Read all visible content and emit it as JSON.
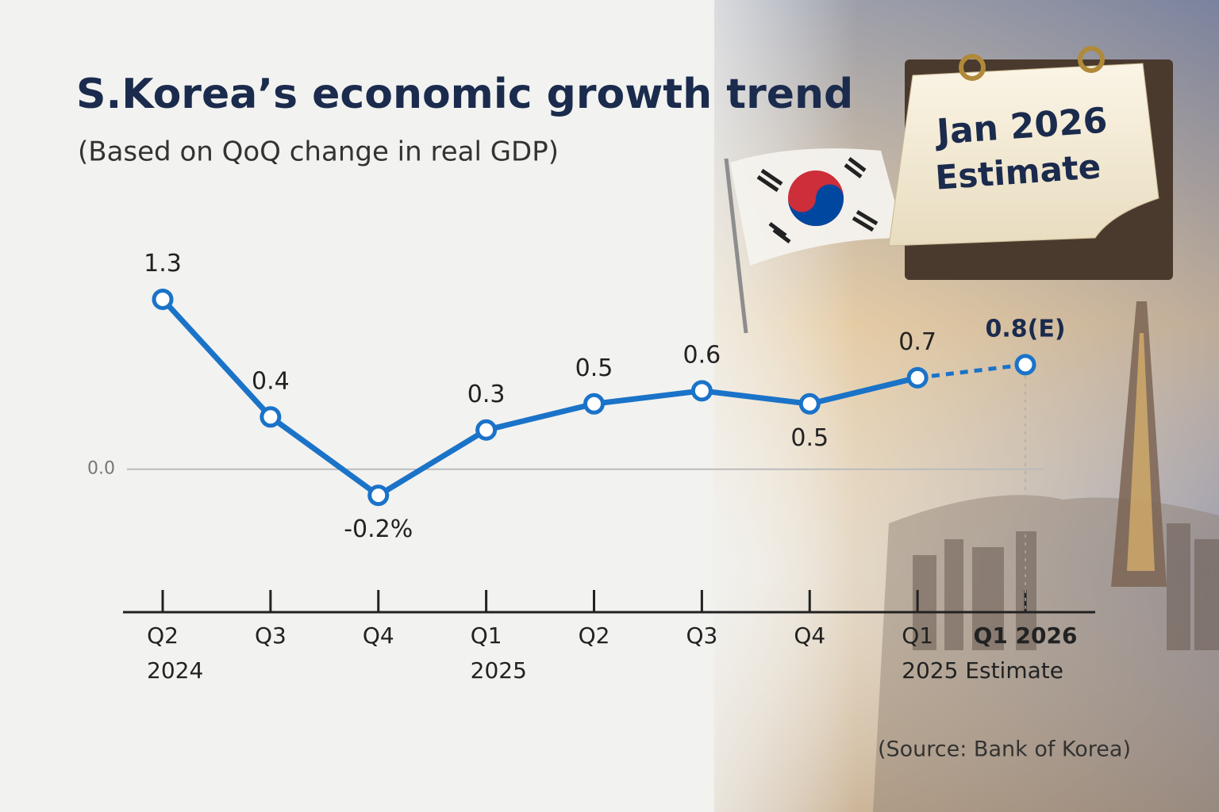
{
  "chart_data": {
    "type": "line",
    "title": "S.Korea’s economic growth trend",
    "subtitle": "(Based on QoQ change in real GDP)",
    "source": "(Source: Bank of Korea)",
    "calendar_text": [
      "Jan 2026",
      "Estimate"
    ],
    "categories": [
      "Q2",
      "Q3",
      "Q4",
      "Q1",
      "Q2",
      "Q3",
      "Q4",
      "Q1",
      "Q1 2026"
    ],
    "category_sublabels": [
      "2024",
      null,
      null,
      "2025",
      null,
      null,
      null,
      "2025 Estimate",
      null
    ],
    "values": [
      1.3,
      0.4,
      -0.2,
      0.3,
      0.5,
      0.6,
      0.5,
      0.7,
      0.8
    ],
    "value_labels": [
      "1.3",
      "0.4",
      "-0.2%",
      "0.3",
      "0.5",
      "0.6",
      "0.5",
      "0.7",
      "0.8(E)"
    ],
    "estimated": [
      false,
      false,
      false,
      false,
      false,
      false,
      false,
      false,
      true
    ],
    "color": "#1a73c8",
    "ylim": [
      -1.1,
      1.6
    ],
    "yticks": [
      {
        "value": 0,
        "label": "0.0"
      }
    ],
    "grid": true
  }
}
